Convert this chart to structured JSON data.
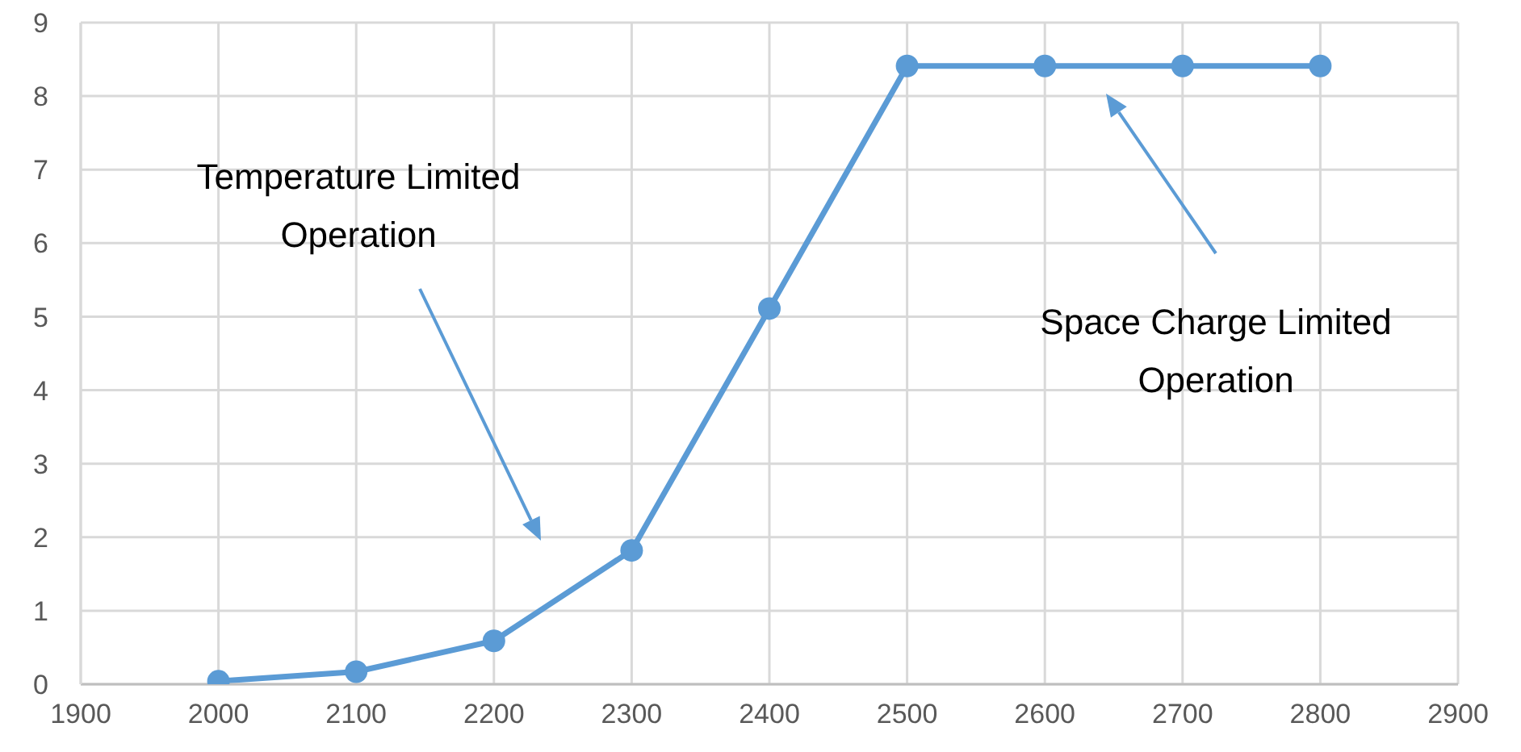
{
  "chart_data": {
    "type": "line",
    "x": [
      2000,
      2100,
      2200,
      2300,
      2400,
      2500,
      2600,
      2700,
      2800
    ],
    "series": [
      {
        "color": "#5b9bd5",
        "values": [
          0.04,
          0.17,
          0.59,
          1.82,
          5.11,
          8.41,
          8.41,
          8.41,
          8.41
        ]
      }
    ],
    "xlim": [
      1900,
      2900
    ],
    "xticks": [
      1900,
      2000,
      2100,
      2200,
      2300,
      2400,
      2500,
      2600,
      2700,
      2800,
      2900
    ],
    "ylim": [
      0,
      9
    ],
    "yticks": [
      0,
      1,
      2,
      3,
      4,
      5,
      6,
      7,
      8,
      9
    ],
    "grid": true,
    "marker": "circle",
    "line_style": "solid",
    "annotations": [
      "Temperature Limited\nOperation",
      "Space Charge Limited\nOperation"
    ]
  }
}
